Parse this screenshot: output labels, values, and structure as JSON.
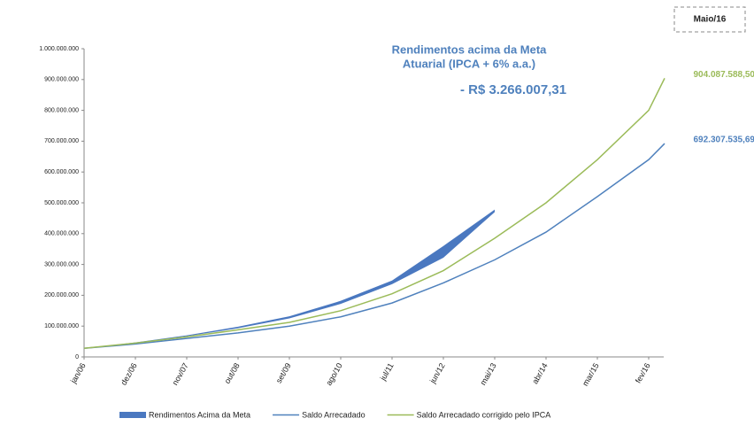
{
  "chart_data": {
    "type": "line",
    "badge": "Maio/16",
    "annotation": [
      "Rendimentos acima da Meta",
      "Atuarial  (IPCA + 6% a.a.)",
      "- R$ 3.266.007,31"
    ],
    "categories": [
      "jan/06",
      "dez/06",
      "nov/07",
      "out/08",
      "set/09",
      "ago/10",
      "jul/11",
      "jun/12",
      "mai/13",
      "abr/14",
      "mar/15",
      "fev/16",
      null
    ],
    "series": [
      {
        "name": "Rendimentos Acima da Meta",
        "kind": "band",
        "color": "#4a78c0",
        "values": [
          28000000,
          47000000,
          70000000,
          98000000,
          132000000,
          182000000,
          248000000,
          360000000,
          478000000,
          null,
          null,
          null,
          null
        ],
        "base": [
          28000000,
          45000000,
          67000000,
          93000000,
          125000000,
          172000000,
          236000000,
          322000000,
          470000000,
          null,
          null,
          null,
          null
        ]
      },
      {
        "name": "Saldo Arrecadado",
        "color": "#4f81bd",
        "values": [
          28000000,
          42000000,
          60000000,
          78000000,
          100000000,
          130000000,
          175000000,
          240000000,
          315000000,
          405000000,
          520000000,
          640000000,
          692307535.69
        ],
        "value_labels": [
          null,
          null,
          null,
          null,
          null,
          null,
          null,
          null,
          null,
          null,
          null,
          null,
          "692.307.535,69"
        ]
      },
      {
        "name": "Saldo Arrecadado corrigido pelo IPCA",
        "color": "#9bbb59",
        "values": [
          28000000,
          45000000,
          65000000,
          88000000,
          112000000,
          150000000,
          205000000,
          280000000,
          385000000,
          500000000,
          640000000,
          800000000,
          904087588.5
        ],
        "value_labels": [
          null,
          null,
          null,
          null,
          null,
          null,
          null,
          null,
          null,
          null,
          null,
          null,
          "904.087.588,50"
        ]
      }
    ],
    "ylim": [
      0,
      1000000000
    ],
    "yticks": [
      0,
      {
        "value": 100000000,
        "label": "100.000.000"
      },
      {
        "value": 200000000,
        "label": "200.000.000"
      },
      {
        "value": 300000000,
        "label": "300.000.000"
      },
      {
        "value": 400000000,
        "label": "400.000.000"
      },
      {
        "value": 500000000,
        "label": "500.000.000"
      },
      {
        "value": 600000000,
        "label": "600.000.000"
      },
      {
        "value": 700000000,
        "label": "700.000.000"
      },
      {
        "value": 800000000,
        "label": "800.000.000"
      },
      {
        "value": 900000000,
        "label": "900.000.000"
      },
      {
        "value": 1000000000,
        "label": "1.000.000.000"
      }
    ]
  }
}
